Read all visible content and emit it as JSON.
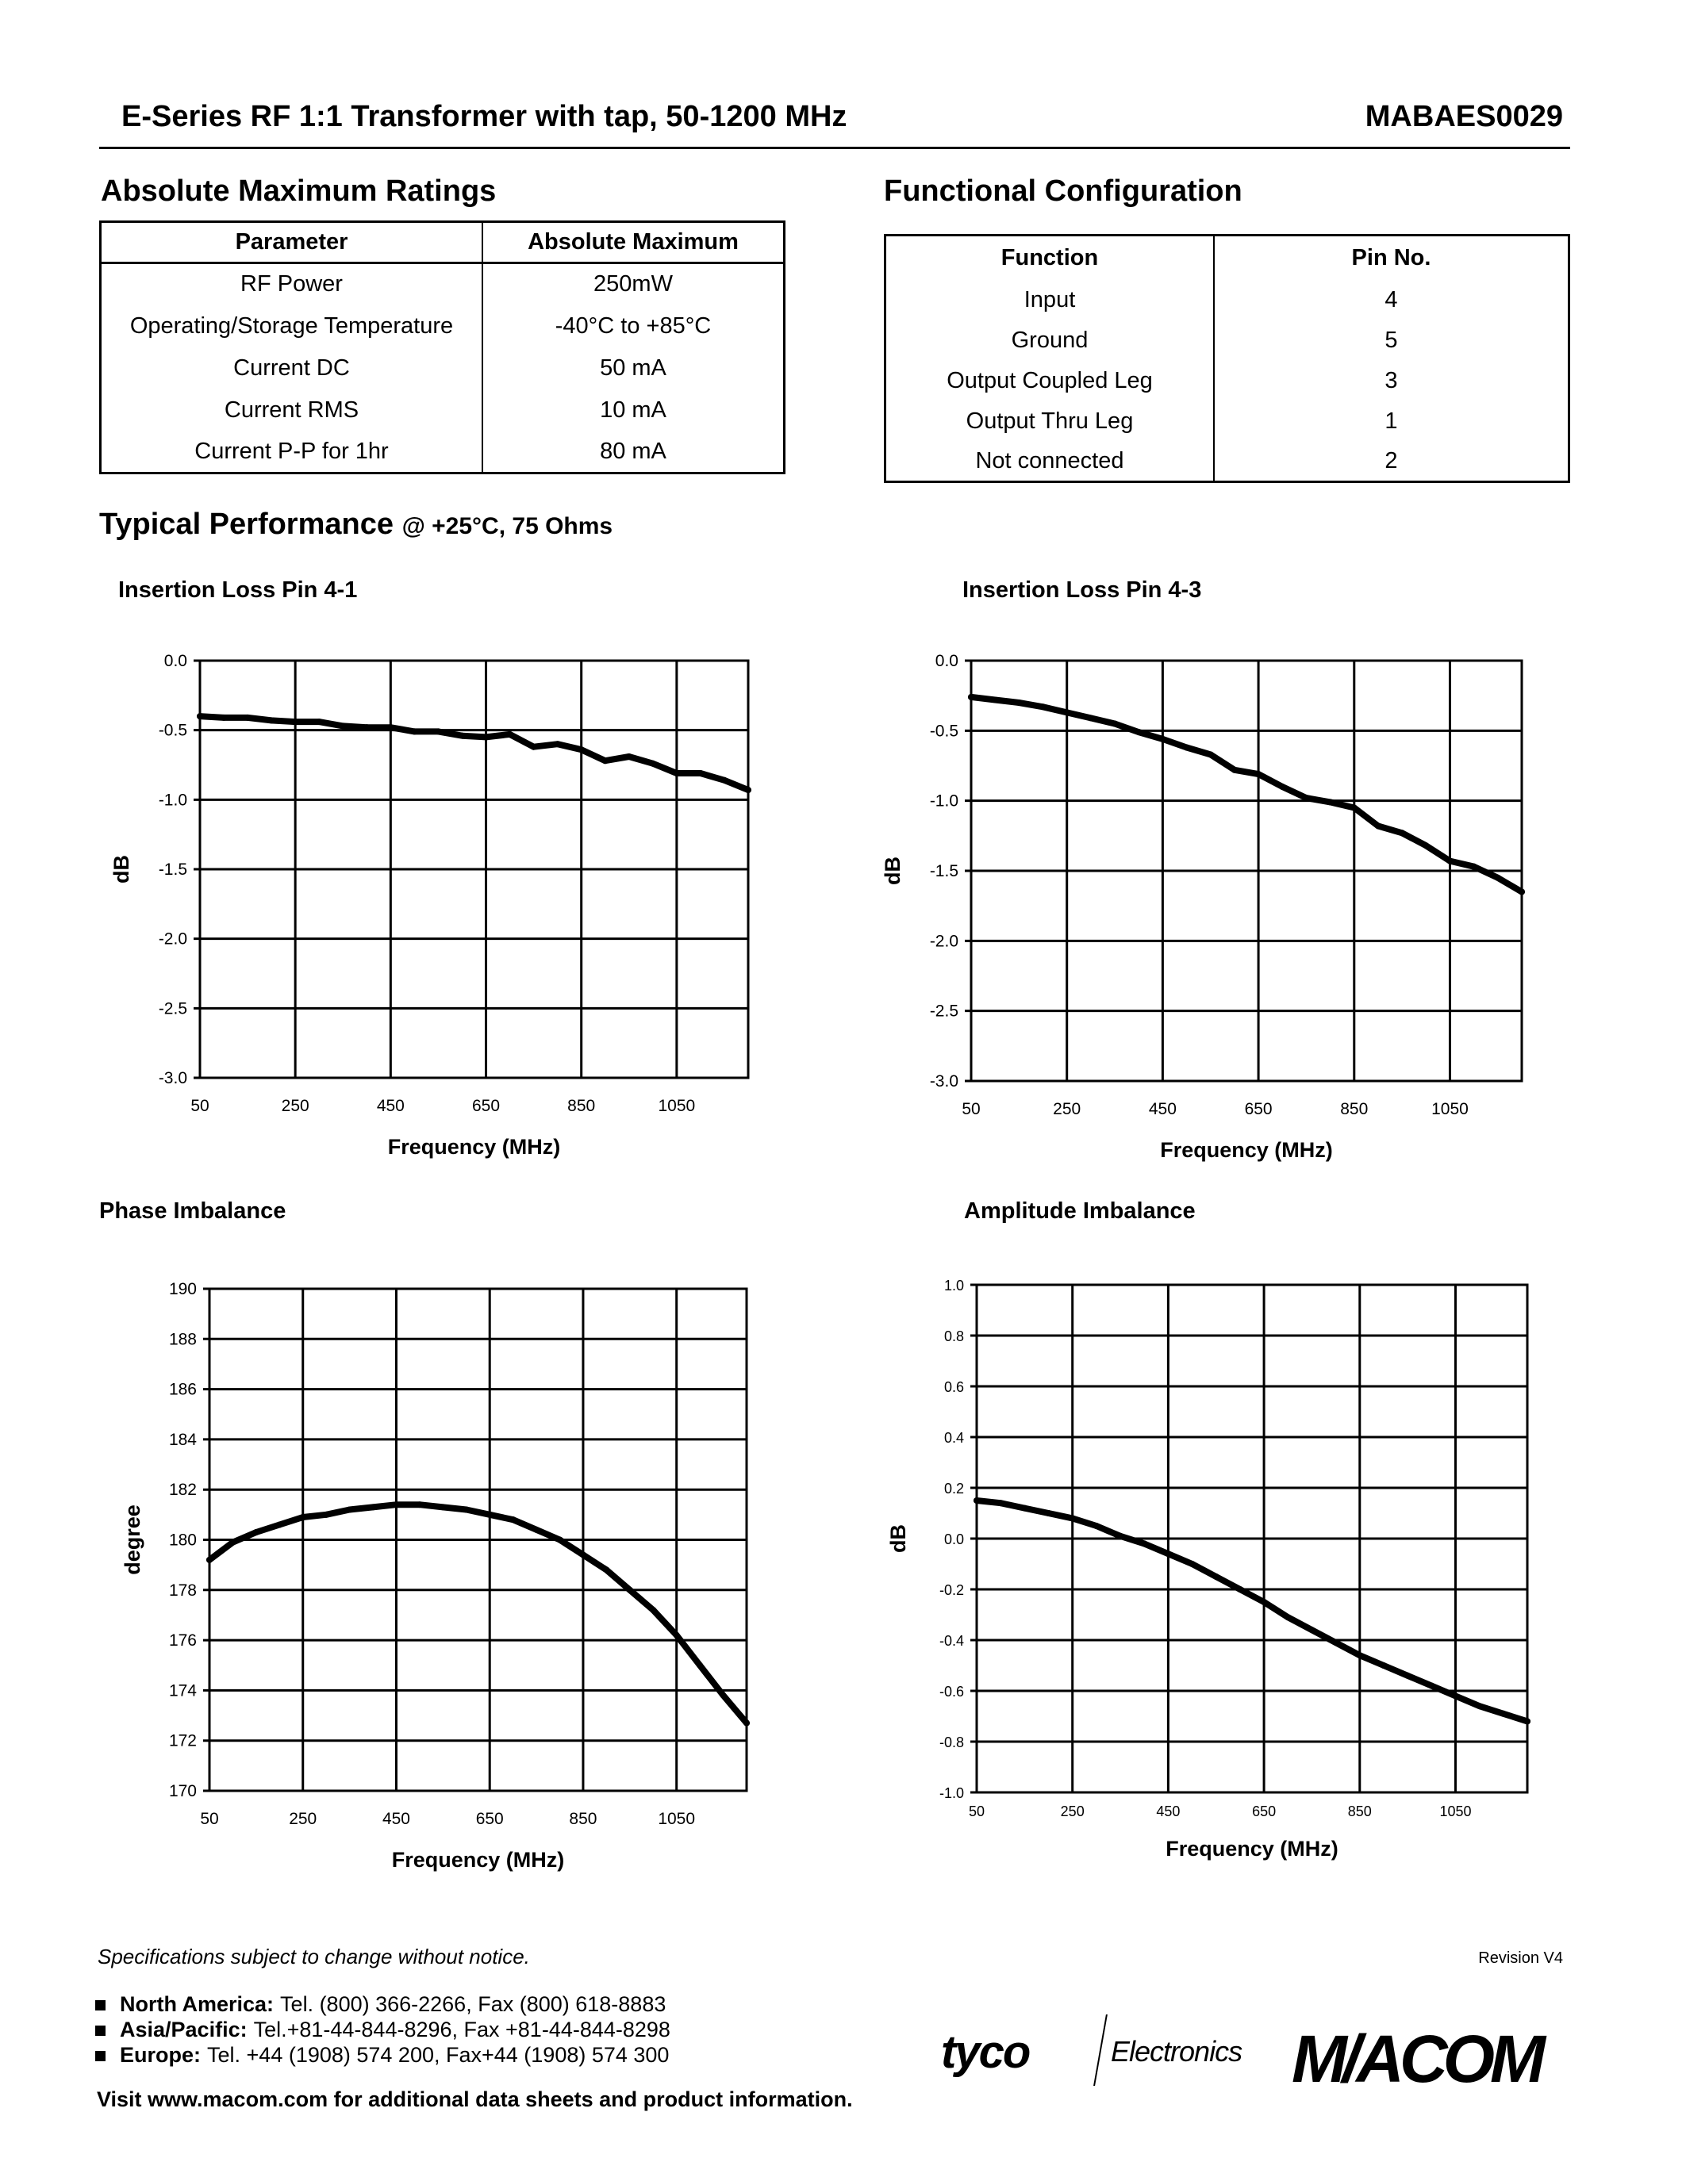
{
  "header": {
    "title": "E-Series RF 1:1 Transformer with tap, 50-1200 MHz",
    "part_number": "MABAES0029"
  },
  "abs_max": {
    "heading": "Absolute Maximum Ratings",
    "columns": [
      "Parameter",
      "Absolute Maximum"
    ],
    "rows": [
      [
        "RF Power",
        "250mW"
      ],
      [
        "Operating/Storage Temperature",
        "-40°C to +85°C"
      ],
      [
        "Current DC",
        "50 mA"
      ],
      [
        "Current RMS",
        "10 mA"
      ],
      [
        "Current P-P for 1hr",
        "80 mA"
      ]
    ]
  },
  "func_config": {
    "heading": "Functional Configuration",
    "columns": [
      "Function",
      "Pin No."
    ],
    "rows": [
      [
        "Input",
        "4"
      ],
      [
        "Ground",
        "5"
      ],
      [
        "Output Coupled Leg",
        "3"
      ],
      [
        "Output Thru Leg",
        "1"
      ],
      [
        "Not connected",
        "2"
      ]
    ]
  },
  "performance": {
    "heading": "Typical Performance",
    "conditions": "@ +25°C, 75 Ohms"
  },
  "chart_data": [
    {
      "type": "line",
      "title": "Insertion Loss Pin 4-1",
      "xlabel": "Frequency (MHz)",
      "ylabel": "dB",
      "xlim": [
        50,
        1200
      ],
      "ylim": [
        -3.0,
        0.0
      ],
      "xticks": [
        "50",
        "250",
        "450",
        "650",
        "850",
        "1050"
      ],
      "yticks": [
        "0.0",
        "-0.5",
        "-1.0",
        "-1.5",
        "-2.0",
        "-2.5",
        "-3.0"
      ],
      "grid": true,
      "x": [
        50,
        100,
        150,
        200,
        250,
        300,
        350,
        400,
        450,
        500,
        550,
        600,
        650,
        700,
        750,
        800,
        850,
        900,
        950,
        1000,
        1050,
        1100,
        1150,
        1200
      ],
      "y": [
        -0.4,
        -0.41,
        -0.41,
        -0.43,
        -0.44,
        -0.44,
        -0.47,
        -0.48,
        -0.48,
        -0.51,
        -0.51,
        -0.54,
        -0.55,
        -0.53,
        -0.62,
        -0.6,
        -0.64,
        -0.72,
        -0.69,
        -0.74,
        -0.81,
        -0.81,
        -0.86,
        -0.93
      ]
    },
    {
      "type": "line",
      "title": "Insertion Loss Pin 4-3",
      "xlabel": "Frequency (MHz)",
      "ylabel": "dB",
      "xlim": [
        50,
        1200
      ],
      "ylim": [
        -3.0,
        0.0
      ],
      "xticks": [
        "50",
        "250",
        "450",
        "650",
        "850",
        "1050"
      ],
      "yticks": [
        "0.0",
        "-0.5",
        "-1.0",
        "-1.5",
        "-2.0",
        "-2.5",
        "-3.0"
      ],
      "grid": true,
      "x": [
        50,
        100,
        150,
        200,
        250,
        300,
        350,
        400,
        450,
        500,
        550,
        600,
        650,
        700,
        750,
        800,
        850,
        900,
        950,
        1000,
        1050,
        1100,
        1150,
        1200
      ],
      "y": [
        -0.26,
        -0.28,
        -0.3,
        -0.33,
        -0.37,
        -0.41,
        -0.45,
        -0.51,
        -0.56,
        -0.62,
        -0.67,
        -0.78,
        -0.81,
        -0.9,
        -0.98,
        -1.01,
        -1.05,
        -1.18,
        -1.23,
        -1.32,
        -1.43,
        -1.47,
        -1.55,
        -1.65
      ]
    },
    {
      "type": "line",
      "title": "Phase Imbalance",
      "xlabel": "Frequency (MHz)",
      "ylabel": "degree",
      "xlim": [
        50,
        1200
      ],
      "ylim": [
        170,
        190
      ],
      "xticks": [
        "50",
        "250",
        "450",
        "650",
        "850",
        "1050"
      ],
      "yticks": [
        "190",
        "188",
        "186",
        "184",
        "182",
        "180",
        "178",
        "176",
        "174",
        "172",
        "170"
      ],
      "grid": true,
      "x": [
        50,
        100,
        150,
        200,
        250,
        300,
        350,
        400,
        450,
        500,
        550,
        600,
        650,
        700,
        750,
        800,
        850,
        900,
        950,
        1000,
        1050,
        1100,
        1150,
        1200
      ],
      "y": [
        179.2,
        179.9,
        180.3,
        180.6,
        180.9,
        181.0,
        181.2,
        181.3,
        181.4,
        181.4,
        181.3,
        181.2,
        181.0,
        180.8,
        180.4,
        180.0,
        179.4,
        178.8,
        178.0,
        177.2,
        176.2,
        175.0,
        173.8,
        172.7
      ]
    },
    {
      "type": "line",
      "title": "Amplitude Imbalance",
      "xlabel": "Frequency (MHz)",
      "ylabel": "dB",
      "xlim": [
        50,
        1200
      ],
      "ylim": [
        -1.0,
        1.0
      ],
      "xticks": [
        "50",
        "250",
        "450",
        "650",
        "850",
        "1050"
      ],
      "yticks": [
        "1.0",
        "0.8",
        "0.6",
        "0.4",
        "0.2",
        "0.0",
        "-0.2",
        "-0.4",
        "-0.6",
        "-0.8",
        "-1.0"
      ],
      "grid": true,
      "x": [
        50,
        100,
        150,
        200,
        250,
        300,
        350,
        400,
        450,
        500,
        550,
        600,
        650,
        700,
        750,
        800,
        850,
        900,
        950,
        1000,
        1050,
        1100,
        1150,
        1200
      ],
      "y": [
        0.15,
        0.14,
        0.12,
        0.1,
        0.08,
        0.05,
        0.01,
        -0.02,
        -0.06,
        -0.1,
        -0.15,
        -0.2,
        -0.25,
        -0.31,
        -0.36,
        -0.41,
        -0.46,
        -0.5,
        -0.54,
        -0.58,
        -0.62,
        -0.66,
        -0.69,
        -0.72
      ]
    }
  ],
  "footer": {
    "notice": "Specifications subject to change without notice.",
    "revision": "Revision V4",
    "contacts": [
      {
        "region": "North America:",
        "details": "Tel. (800) 366-2266,  Fax (800) 618-8883"
      },
      {
        "region": "Asia/Pacific:",
        "details": "Tel.+81-44-844-8296,  Fax +81-44-844-8298"
      },
      {
        "region": "Europe:",
        "details": "Tel. +44 (1908) 574 200,  Fax+44 (1908) 574 300"
      }
    ],
    "visit": "Visit www.macom.com for additional data sheets and product information.",
    "logos": {
      "tyco": "tyco",
      "electronics": "Electronics",
      "macom": "M/ACOM"
    }
  }
}
